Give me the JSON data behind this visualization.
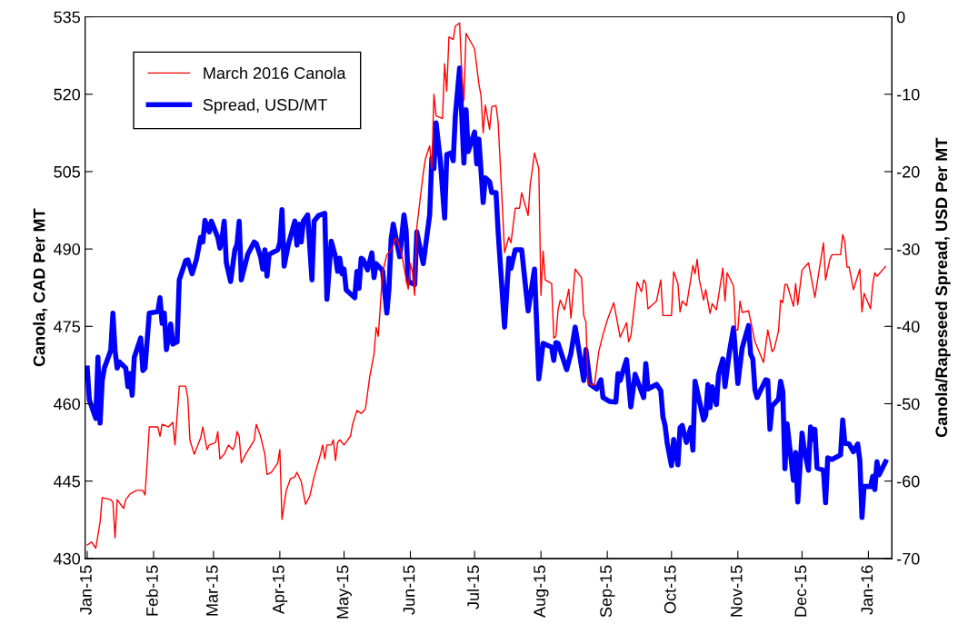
{
  "chart_data": {
    "type": "line",
    "ylabel": "Canola, CAD Per MT",
    "y2label": "Canola/Rapeseed Spread, USD Per MT",
    "xlim": [
      "2014-12-31",
      "2016-01-12"
    ],
    "xticks": [
      {
        "value": "2015-01-01",
        "label": "Jan-15"
      },
      {
        "value": "2015-02-01",
        "label": "Feb-15"
      },
      {
        "value": "2015-03-01",
        "label": "Mar-15"
      },
      {
        "value": "2015-04-01",
        "label": "Apr-15"
      },
      {
        "value": "2015-05-01",
        "label": "May-15"
      },
      {
        "value": "2015-06-01",
        "label": "Jun-15"
      },
      {
        "value": "2015-07-01",
        "label": "Jul-15"
      },
      {
        "value": "2015-08-01",
        "label": "Aug-15"
      },
      {
        "value": "2015-09-01",
        "label": "Sep-15"
      },
      {
        "value": "2015-10-01",
        "label": "Oct-15"
      },
      {
        "value": "2015-11-01",
        "label": "Nov-15"
      },
      {
        "value": "2015-12-01",
        "label": "Dec-15"
      },
      {
        "value": "2016-01-01",
        "label": "Jan-16"
      }
    ],
    "ylim": [
      430,
      535
    ],
    "yticks": [
      430,
      445,
      460,
      475,
      490,
      505,
      520,
      535
    ],
    "y2lim": [
      -70,
      0
    ],
    "y2ticks": [
      -70,
      -60,
      -50,
      -40,
      -30,
      -20,
      -10,
      0
    ],
    "grid": false,
    "legend": "top left",
    "marker": "none",
    "line_style": "solid",
    "series": [
      {
        "name": "March 2016 Canola",
        "color": "#ff0000",
        "axis": "y",
        "x": [
          "2015-01-01",
          "2015-01-03",
          "2015-01-05",
          "2015-01-07",
          "2015-01-08",
          "2015-01-12",
          "2015-01-13",
          "2015-01-14",
          "2015-01-15",
          "2015-01-18",
          "2015-01-19",
          "2015-01-21",
          "2015-01-24",
          "2015-01-27",
          "2015-01-28",
          "2015-01-29",
          "2015-01-30",
          "2015-02-01",
          "2015-02-03",
          "2015-02-04",
          "2015-02-05",
          "2015-02-08",
          "2015-02-10",
          "2015-02-11",
          "2015-02-13",
          "2015-02-16",
          "2015-02-17",
          "2015-02-18",
          "2015-02-20",
          "2015-02-23",
          "2015-02-24",
          "2015-02-26",
          "2015-02-27",
          "2015-03-02",
          "2015-03-03",
          "2015-03-04",
          "2015-03-06",
          "2015-03-08",
          "2015-03-10",
          "2015-03-11",
          "2015-03-12",
          "2015-03-13",
          "2015-03-14",
          "2015-03-16",
          "2015-03-20",
          "2015-03-21",
          "2015-03-23",
          "2015-03-25",
          "2015-03-26",
          "2015-03-28",
          "2015-03-31",
          "2015-04-01",
          "2015-04-02",
          "2015-04-04",
          "2015-04-06",
          "2015-04-08",
          "2015-04-09",
          "2015-04-11",
          "2015-04-13",
          "2015-04-15",
          "2015-04-17",
          "2015-04-20",
          "2015-04-21",
          "2015-04-22",
          "2015-04-23",
          "2015-04-25",
          "2015-04-26",
          "2015-04-27",
          "2015-04-28",
          "2015-04-29",
          "2015-05-01",
          "2015-05-04",
          "2015-05-05",
          "2015-05-07",
          "2015-05-09",
          "2015-05-11",
          "2015-05-13",
          "2015-05-15",
          "2015-05-16",
          "2015-05-17",
          "2015-05-19",
          "2015-05-21",
          "2015-05-23",
          "2015-05-24",
          "2015-05-25",
          "2015-05-26",
          "2015-05-28",
          "2015-05-30",
          "2015-05-31",
          "2015-06-01",
          "2015-06-02",
          "2015-06-03",
          "2015-06-04",
          "2015-06-06",
          "2015-06-07",
          "2015-06-08",
          "2015-06-10",
          "2015-06-11",
          "2015-06-12",
          "2015-06-13",
          "2015-06-16",
          "2015-06-17",
          "2015-06-18",
          "2015-06-19",
          "2015-06-21",
          "2015-06-22",
          "2015-06-24",
          "2015-06-25",
          "2015-06-26",
          "2015-06-27",
          "2015-06-29",
          "2015-07-01",
          "2015-07-03",
          "2015-07-04",
          "2015-07-05",
          "2015-07-06",
          "2015-07-08",
          "2015-07-09",
          "2015-07-11",
          "2015-07-12",
          "2015-07-14",
          "2015-07-15",
          "2015-07-17",
          "2015-07-18",
          "2015-07-20",
          "2015-07-22",
          "2015-07-23",
          "2015-07-26",
          "2015-07-27",
          "2015-07-29",
          "2015-07-31",
          "2015-08-01",
          "2015-08-02",
          "2015-08-03",
          "2015-08-06",
          "2015-08-07",
          "2015-08-08",
          "2015-08-09",
          "2015-08-10",
          "2015-08-12",
          "2015-08-14",
          "2015-08-15",
          "2015-08-17",
          "2015-08-20",
          "2015-08-21",
          "2015-08-22",
          "2015-08-23",
          "2015-08-26",
          "2015-08-28",
          "2015-08-30",
          "2015-09-01",
          "2015-09-04",
          "2015-09-07",
          "2015-09-10",
          "2015-09-11",
          "2015-09-12",
          "2015-09-15",
          "2015-09-17",
          "2015-09-18",
          "2015-09-19",
          "2015-09-20",
          "2015-09-24",
          "2015-09-26",
          "2015-09-27",
          "2015-10-01",
          "2015-10-02",
          "2015-10-04",
          "2015-10-05",
          "2015-10-06",
          "2015-10-08",
          "2015-10-11",
          "2015-10-12",
          "2015-10-13",
          "2015-10-14",
          "2015-10-16",
          "2015-10-17",
          "2015-10-19",
          "2015-10-20",
          "2015-10-22",
          "2015-10-25",
          "2015-10-26",
          "2015-10-27",
          "2015-10-30",
          "2015-10-31",
          "2015-11-01",
          "2015-11-02",
          "2015-11-03",
          "2015-11-06",
          "2015-11-09",
          "2015-11-13",
          "2015-11-15",
          "2015-11-17",
          "2015-11-18",
          "2015-11-20",
          "2015-11-21",
          "2015-11-22",
          "2015-11-23",
          "2015-11-24",
          "2015-11-27",
          "2015-11-28",
          "2015-11-29",
          "2015-12-01",
          "2015-12-04",
          "2015-12-06",
          "2015-12-07",
          "2015-12-11",
          "2015-12-12",
          "2015-12-14",
          "2015-12-15",
          "2015-12-19",
          "2015-12-20",
          "2015-12-21",
          "2015-12-22",
          "2015-12-23",
          "2015-12-25",
          "2015-12-28",
          "2015-12-29",
          "2015-12-30",
          "2016-01-02",
          "2016-01-03",
          "2016-01-04",
          "2016-01-05",
          "2016-01-09"
        ],
        "values": [
          432.6,
          433.2,
          432,
          437,
          441.8,
          441.4,
          440.9,
          434,
          441.4,
          439.7,
          441.4,
          442.5,
          443.2,
          443.2,
          442.3,
          448.5,
          455.5,
          455.5,
          455.5,
          453.7,
          456,
          455.5,
          456.4,
          452,
          463.4,
          463.4,
          461.1,
          452.9,
          450.2,
          453.4,
          455.5,
          451.1,
          452,
          452.5,
          454.6,
          449.3,
          450.2,
          452,
          451.1,
          452,
          454.6,
          453.7,
          448.5,
          450.2,
          452.9,
          456,
          453.7,
          450.2,
          446.3,
          446.7,
          448.5,
          451.1,
          437.6,
          443.2,
          445.5,
          445.8,
          446.7,
          444.9,
          440.5,
          442.1,
          445.8,
          450.2,
          452,
          449.3,
          452,
          452,
          453,
          449,
          452.5,
          453,
          452,
          453.7,
          456,
          458.7,
          458.1,
          459,
          465.2,
          469.6,
          474.8,
          473.1,
          485.4,
          488.9,
          489.8,
          490.7,
          492.1,
          491.6,
          488.9,
          484.2,
          482.2,
          487.2,
          485.4,
          481,
          494.2,
          501.2,
          504.7,
          507.4,
          510,
          505.6,
          520,
          515.8,
          515.3,
          525.9,
          520.6,
          531.1,
          530.6,
          533.2,
          533.8,
          524.1,
          518.8,
          531.8,
          530.3,
          528.8,
          522,
          519.7,
          512.5,
          517.9,
          513.2,
          517.6,
          517.8,
          514.6,
          498.1,
          489.3,
          492.3,
          491.2,
          497.9,
          497.9,
          500.9,
          496.5,
          502.5,
          508.6,
          505.6,
          481,
          489.6,
          484,
          483.3,
          472.7,
          473.1,
          478.2,
          480.1,
          478.2,
          482.2,
          476.6,
          486.1,
          484.4,
          477.1,
          475.9,
          463.9,
          463.6,
          470.1,
          473.4,
          476.2,
          479.6,
          472.9,
          475.7,
          472,
          473.1,
          483.6,
          481.7,
          484,
          483.3,
          478.4,
          479.9,
          484,
          477.1,
          477.1,
          485.6,
          483.3,
          477.8,
          479.9,
          479,
          486.8,
          485.2,
          488,
          484,
          480.1,
          482.1,
          477.5,
          479.4,
          478.2,
          486.3,
          479.9,
          485.4,
          482.8,
          474.3,
          474.3,
          479.9,
          477.7,
          478,
          472,
          468,
          474.3,
          470.1,
          470.6,
          474.1,
          480.1,
          479.6,
          483.1,
          483.1,
          478.9,
          483.3,
          479.2,
          485.9,
          487.3,
          482.9,
          480.6,
          491.2,
          484,
          488,
          488.9,
          488.9,
          492.8,
          491.4,
          486.5,
          486.5,
          482.1,
          486.1,
          477.8,
          481.4,
          478.4,
          483.1,
          485.4,
          484.7,
          486.6
        ]
      },
      {
        "name": "Spread, USD/MT",
        "color": "#0000ff",
        "axis": "y2",
        "x": [
          "2015-01-01",
          "2015-01-02",
          "2015-01-05",
          "2015-01-06",
          "2015-01-07",
          "2015-01-08",
          "2015-01-09",
          "2015-01-12",
          "2015-01-13",
          "2015-01-14",
          "2015-01-15",
          "2015-01-16",
          "2015-01-19",
          "2015-01-20",
          "2015-01-21",
          "2015-01-22",
          "2015-01-23",
          "2015-01-26",
          "2015-01-27",
          "2015-01-28",
          "2015-01-30",
          "2015-02-03",
          "2015-02-04",
          "2015-02-05",
          "2015-02-06",
          "2015-02-07",
          "2015-02-09",
          "2015-02-10",
          "2015-02-12",
          "2015-02-13",
          "2015-02-16",
          "2015-02-17",
          "2015-02-19",
          "2015-02-21",
          "2015-02-23",
          "2015-02-24",
          "2015-02-25",
          "2015-02-27",
          "2015-02-28",
          "2015-03-03",
          "2015-03-04",
          "2015-03-05",
          "2015-03-06",
          "2015-03-07",
          "2015-03-09",
          "2015-03-11",
          "2015-03-12",
          "2015-03-13",
          "2015-03-14",
          "2015-03-17",
          "2015-03-20",
          "2015-03-21",
          "2015-03-23",
          "2015-03-24",
          "2015-03-25",
          "2015-03-26",
          "2015-03-27",
          "2015-03-31",
          "2015-04-01",
          "2015-04-02",
          "2015-04-03",
          "2015-04-05",
          "2015-04-08",
          "2015-04-09",
          "2015-04-10",
          "2015-04-11",
          "2015-04-12",
          "2015-04-14",
          "2015-04-16",
          "2015-04-17",
          "2015-04-19",
          "2015-04-22",
          "2015-04-23",
          "2015-04-25",
          "2015-04-27",
          "2015-04-28",
          "2015-04-29",
          "2015-04-30",
          "2015-05-01",
          "2015-05-02",
          "2015-05-06",
          "2015-05-07",
          "2015-05-08",
          "2015-05-09",
          "2015-05-10",
          "2015-05-12",
          "2015-05-14",
          "2015-05-15",
          "2015-05-16",
          "2015-05-19",
          "2015-05-21",
          "2015-05-22",
          "2015-05-23",
          "2015-05-24",
          "2015-05-27",
          "2015-05-29",
          "2015-05-30",
          "2015-05-31",
          "2015-06-03",
          "2015-06-04",
          "2015-06-05",
          "2015-06-07",
          "2015-06-10",
          "2015-06-11",
          "2015-06-12",
          "2015-06-13",
          "2015-06-15",
          "2015-06-17",
          "2015-06-18",
          "2015-06-20",
          "2015-06-21",
          "2015-06-22",
          "2015-06-24",
          "2015-06-25",
          "2015-06-26",
          "2015-06-27",
          "2015-06-28",
          "2015-07-01",
          "2015-07-02",
          "2015-07-03",
          "2015-07-05",
          "2015-07-06",
          "2015-07-08",
          "2015-07-09",
          "2015-07-11",
          "2015-07-12",
          "2015-07-15",
          "2015-07-17",
          "2015-07-18",
          "2015-07-20",
          "2015-07-23",
          "2015-07-26",
          "2015-07-29",
          "2015-07-31",
          "2015-08-02",
          "2015-08-06",
          "2015-08-07",
          "2015-08-08",
          "2015-08-09",
          "2015-08-13",
          "2015-08-15",
          "2015-08-17",
          "2015-08-21",
          "2015-08-22",
          "2015-08-24",
          "2015-08-27",
          "2015-08-29",
          "2015-08-30",
          "2015-09-02",
          "2015-09-05",
          "2015-09-06",
          "2015-09-07",
          "2015-09-10",
          "2015-09-12",
          "2015-09-14",
          "2015-09-18",
          "2015-09-19",
          "2015-09-20",
          "2015-09-24",
          "2015-09-26",
          "2015-09-27",
          "2015-09-28",
          "2015-09-29",
          "2015-10-01",
          "2015-10-02",
          "2015-10-04",
          "2015-10-05",
          "2015-10-06",
          "2015-10-08",
          "2015-10-10",
          "2015-10-11",
          "2015-10-12",
          "2015-10-16",
          "2015-10-17",
          "2015-10-18",
          "2015-10-19",
          "2015-10-20",
          "2015-10-22",
          "2015-10-23",
          "2015-10-25",
          "2015-10-26",
          "2015-10-28",
          "2015-10-30",
          "2015-11-01",
          "2015-11-03",
          "2015-11-06",
          "2015-11-07",
          "2015-11-08",
          "2015-11-09",
          "2015-11-10",
          "2015-11-14",
          "2015-11-15",
          "2015-11-16",
          "2015-11-17",
          "2015-11-20",
          "2015-11-21",
          "2015-11-22",
          "2015-11-23",
          "2015-11-24",
          "2015-11-27",
          "2015-11-28",
          "2015-11-29",
          "2015-12-01",
          "2015-12-02",
          "2015-12-04",
          "2015-12-05",
          "2015-12-06",
          "2015-12-07",
          "2015-12-08",
          "2015-12-11",
          "2015-12-12",
          "2015-12-13",
          "2015-12-15",
          "2015-12-19",
          "2015-12-20",
          "2015-12-21",
          "2015-12-23",
          "2015-12-25",
          "2015-12-27",
          "2015-12-28",
          "2015-12-29",
          "2015-12-30",
          "2016-01-02",
          "2016-01-03",
          "2016-01-04",
          "2016-01-05",
          "2016-01-06",
          "2016-01-09"
        ],
        "values": [
          -45.4,
          -49.5,
          -51.9,
          -44,
          -52.5,
          -47,
          -45.4,
          -43.1,
          -38.3,
          -43.1,
          -45.4,
          -44.6,
          -45.4,
          -47.8,
          -46.1,
          -48.9,
          -44,
          -41.5,
          -45.7,
          -45.4,
          -38.3,
          -38.1,
          -36.3,
          -39.6,
          -38.3,
          -43,
          -39.7,
          -42.3,
          -42,
          -34,
          -31.5,
          -31.4,
          -33.2,
          -31.4,
          -28.5,
          -29.1,
          -26.3,
          -27.8,
          -26.4,
          -28.5,
          -29.9,
          -28.6,
          -26.4,
          -31.8,
          -34.2,
          -30.1,
          -29.4,
          -26.4,
          -34,
          -30.7,
          -29.1,
          -29.3,
          -31,
          -32.6,
          -30.1,
          -33.5,
          -30.7,
          -30.1,
          -29.2,
          -24.9,
          -32.2,
          -29.4,
          -26.4,
          -29.5,
          -26.8,
          -29.1,
          -26.4,
          -25.6,
          -34,
          -26.4,
          -25.7,
          -25.4,
          -36.5,
          -29,
          -31,
          -32.9,
          -31.2,
          -33.2,
          -32.6,
          -35.3,
          -36.3,
          -32.9,
          -35.1,
          -31.2,
          -31.4,
          -32.7,
          -30.5,
          -33.7,
          -31.9,
          -32.8,
          -38.3,
          -35.1,
          -28.7,
          -26.8,
          -31,
          -25.6,
          -27.6,
          -34.2,
          -34.6,
          -27.8,
          -29.2,
          -31.9,
          -25.6,
          -18.3,
          -19.6,
          -13.7,
          -18.6,
          -26,
          -17.8,
          -17.6,
          -18.6,
          -12.8,
          -6.6,
          -12.8,
          -18.9,
          -12,
          -17.4,
          -14.9,
          -19,
          -15.8,
          -24,
          -20.8,
          -21.3,
          -22.7,
          -22.7,
          -27.8,
          -40.1,
          -31.2,
          -32.5,
          -30.1,
          -30.1,
          -38,
          -32.6,
          -46.8,
          -42.2,
          -42.7,
          -44.4,
          -42.1,
          -42.2,
          -45.6,
          -43.5,
          -40.1,
          -47,
          -43,
          -47.5,
          -48.1,
          -46.9,
          -49.2,
          -49.7,
          -49.8,
          -46.1,
          -47,
          -44.3,
          -50.4,
          -46.2,
          -49.2,
          -44.8,
          -48.1,
          -47.5,
          -48.3,
          -51.7,
          -52.8,
          -55.1,
          -58,
          -54.6,
          -57.9,
          -53.1,
          -52.8,
          -55,
          -53.1,
          -56,
          -47.1,
          -52.1,
          -51.5,
          -47.5,
          -50.5,
          -47.8,
          -50.1,
          -46.2,
          -44.2,
          -47.8,
          -43.4,
          -40.2,
          -47.4,
          -42.8,
          -39.9,
          -43.6,
          -44.2,
          -48.2,
          -49.2,
          -46.9,
          -47,
          -53.3,
          -50.3,
          -49.4,
          -47.1,
          -48.4,
          -58.4,
          -52.6,
          -59.9,
          -56.3,
          -62.7,
          -53.8,
          -55.8,
          -58.6,
          -53,
          -54.6,
          -53.3,
          -58.3,
          -58.6,
          -62.8,
          -57,
          -57.2,
          -56.6,
          -52.1,
          -55.1,
          -55.2,
          -56.2,
          -55.2,
          -57.3,
          -64.7,
          -60.7,
          -60.7,
          -59.4,
          -61.1,
          -57.5,
          -59.2,
          -57.5
        ]
      }
    ]
  }
}
